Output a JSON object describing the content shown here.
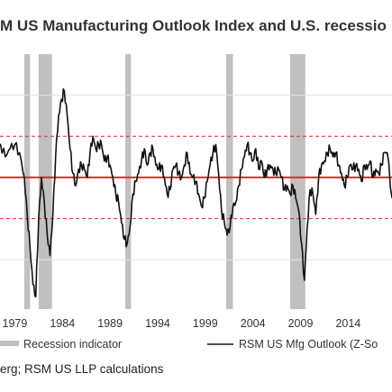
{
  "chart_data": {
    "type": "line",
    "title": "M US Manufacturing Outlook Index and U.S. recessio",
    "x_ticks": [
      "1979",
      "1984",
      "1989",
      "1994",
      "1999",
      "2004",
      "2009",
      "2014"
    ],
    "xlim": [
      1976.5,
      2018.6
    ],
    "ylim": [
      -3.2,
      3.0
    ],
    "reference_lines": [
      {
        "y": 0,
        "style": "solid",
        "color": "#e0282e"
      },
      {
        "y": 1,
        "style": "dashed",
        "color": "#e0282e"
      },
      {
        "y": -1,
        "style": "dashed",
        "color": "#e0282e"
      }
    ],
    "recessions": [
      {
        "start": 1980.0,
        "end": 1980.6
      },
      {
        "start": 1981.5,
        "end": 1982.9
      },
      {
        "start": 1990.6,
        "end": 1991.2
      },
      {
        "start": 2001.2,
        "end": 2001.9
      },
      {
        "start": 2007.9,
        "end": 2009.5
      }
    ],
    "series": [
      {
        "name": "RSM US Mfg Outlook (Z-So",
        "color": "#111111",
        "x": [
          1976.5,
          1977,
          1977.5,
          1978,
          1978.5,
          1979,
          1979.5,
          1980,
          1980.3,
          1980.6,
          1980.9,
          1981.2,
          1981.5,
          1981.8,
          1982.1,
          1982.4,
          1982.7,
          1983,
          1983.3,
          1983.6,
          1983.9,
          1984.2,
          1984.5,
          1984.8,
          1985.1,
          1985.4,
          1985.7,
          1986,
          1986.3,
          1986.6,
          1986.9,
          1987.2,
          1987.5,
          1987.8,
          1988.1,
          1988.4,
          1988.7,
          1989,
          1989.3,
          1989.6,
          1989.9,
          1990.2,
          1990.5,
          1990.8,
          1991.1,
          1991.4,
          1991.7,
          1992,
          1992.3,
          1992.6,
          1992.9,
          1993.2,
          1993.5,
          1993.8,
          1994.1,
          1994.4,
          1994.7,
          1995,
          1995.3,
          1995.6,
          1995.9,
          1996.2,
          1996.5,
          1996.8,
          1997.1,
          1997.4,
          1997.7,
          1998,
          1998.3,
          1998.6,
          1998.9,
          1999.2,
          1999.5,
          1999.8,
          2000.1,
          2000.4,
          2000.7,
          2001,
          2001.3,
          2001.6,
          2001.9,
          2002.2,
          2002.5,
          2002.8,
          2003.1,
          2003.4,
          2003.7,
          2004,
          2004.3,
          2004.6,
          2004.9,
          2005.2,
          2005.5,
          2005.8,
          2006.1,
          2006.4,
          2006.7,
          2007,
          2007.3,
          2007.6,
          2007.9,
          2008.2,
          2008.5,
          2008.8,
          2009.1,
          2009.4,
          2009.7,
          2010,
          2010.3,
          2010.6,
          2010.9,
          2011.2,
          2011.5,
          2011.8,
          2012.1,
          2012.4,
          2012.7,
          2013,
          2013.3,
          2013.6,
          2013.9,
          2014.2,
          2014.5,
          2014.8,
          2015.1,
          2015.4,
          2015.7,
          2016,
          2016.3,
          2016.6,
          2016.9,
          2017.2,
          2017.5,
          2017.8,
          2018.1,
          2018.6
        ],
        "y": [
          0.2,
          0.6,
          0.8,
          0.5,
          0.7,
          0.8,
          0.6,
          0.0,
          -0.9,
          -1.7,
          -2.6,
          -2.9,
          -1.0,
          0.0,
          -0.6,
          -1.4,
          -1.9,
          -0.9,
          0.6,
          1.5,
          1.9,
          2.1,
          1.5,
          0.7,
          0.1,
          -0.2,
          0.2,
          0.3,
          0.2,
          0.0,
          0.6,
          1.0,
          0.7,
          0.8,
          0.8,
          0.4,
          0.5,
          0.3,
          0.0,
          -0.4,
          -0.6,
          -1.1,
          -1.5,
          -1.6,
          -1.2,
          -0.4,
          -0.1,
          0.1,
          0.4,
          0.7,
          0.3,
          0.6,
          0.7,
          0.3,
          0.2,
          0.3,
          0.0,
          -0.4,
          -0.3,
          0.2,
          0.3,
          0.1,
          0.0,
          0.3,
          0.6,
          0.1,
          0.0,
          -0.1,
          -0.4,
          -0.7,
          -0.5,
          -0.1,
          0.3,
          0.6,
          0.8,
          0.1,
          -0.8,
          -1.1,
          -1.4,
          -1.2,
          -0.7,
          -0.6,
          -0.2,
          0.2,
          0.5,
          0.8,
          0.6,
          0.4,
          0.7,
          0.2,
          0.4,
          0.0,
          0.2,
          0.3,
          0.2,
          0.1,
          0.2,
          0.0,
          -0.3,
          -0.2,
          -0.4,
          -0.2,
          -0.5,
          -0.8,
          -1.6,
          -2.5,
          -1.2,
          -0.3,
          -0.4,
          -0.9,
          0.0,
          0.3,
          0.4,
          0.6,
          0.7,
          0.5,
          0.6,
          0.3,
          0.1,
          -0.2,
          0.0,
          0.3,
          0.2,
          0.3,
          0.2,
          -0.1,
          0.3,
          0.2,
          0.4,
          0.0,
          0.2,
          0.1,
          0.3,
          0.6,
          0.6,
          -0.5
        ]
      }
    ],
    "legend": {
      "placement": "bottom",
      "entries": [
        {
          "label": "Recession indicator",
          "kind": "bar",
          "color": "#c0c0c0"
        },
        {
          "label": "RSM US Mfg Outlook (Z-So",
          "kind": "line",
          "color": "#111111"
        }
      ]
    },
    "grid": false
  },
  "source": "erg; RSM US LLP calculations"
}
